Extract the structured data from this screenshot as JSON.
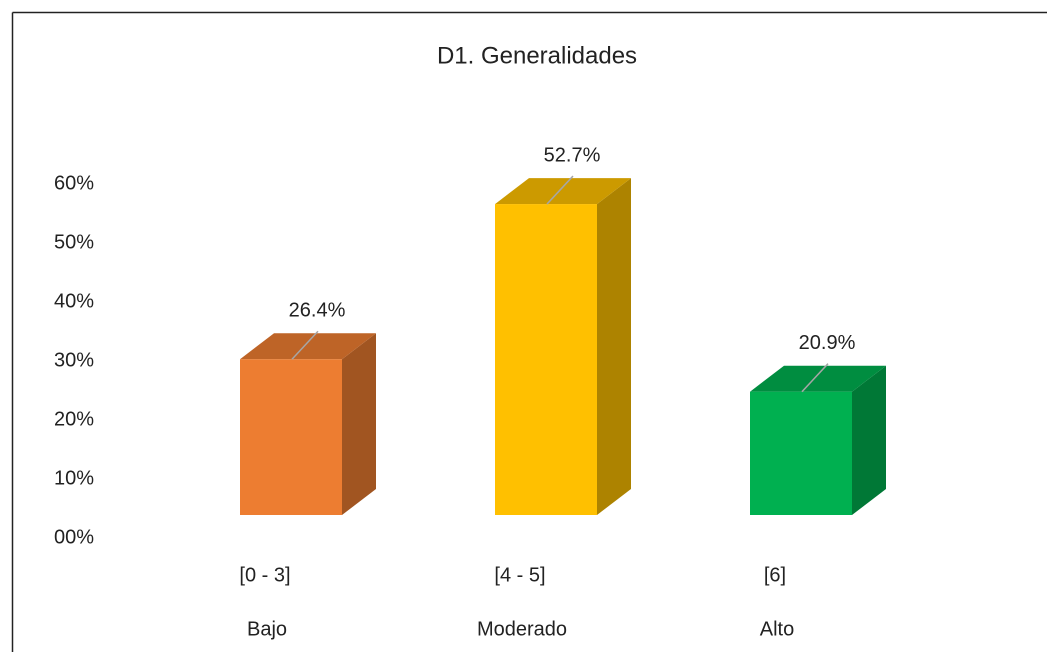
{
  "chart_data": {
    "type": "bar3d",
    "title": "D1. Generalidades",
    "categories": [
      "[0 - 3]",
      "[4 - 5]",
      "[6]"
    ],
    "category_labels": [
      "Bajo",
      "Moderado",
      "Alto"
    ],
    "values": [
      26.4,
      52.7,
      20.9
    ],
    "value_labels": [
      "26.4%",
      "52.7%",
      "20.9%"
    ],
    "colors": [
      "#ed7d31",
      "#ffc000",
      "#00b050"
    ],
    "ylim": [
      0,
      60
    ],
    "yticks": [
      {
        "value": 0,
        "label": "00%"
      },
      {
        "value": 10,
        "label": "10%"
      },
      {
        "value": 20,
        "label": "20%"
      },
      {
        "value": 30,
        "label": "30%"
      },
      {
        "value": 40,
        "label": "40%"
      },
      {
        "value": 50,
        "label": "50%"
      },
      {
        "value": 60,
        "label": "60%"
      }
    ],
    "grid": false
  }
}
